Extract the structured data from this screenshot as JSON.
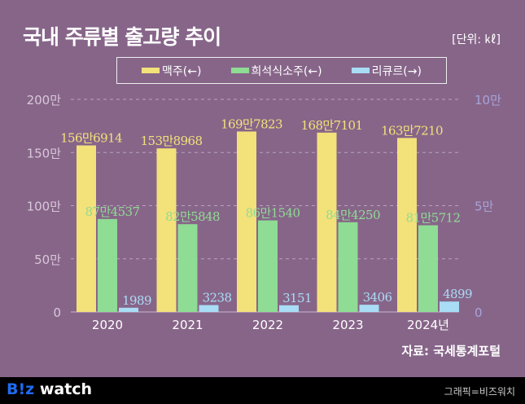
{
  "title": "국내 주류별 출고량 추이",
  "unit": "[단위: ㎘]",
  "source": "자료: 국세통계포털",
  "footer": {
    "logo_a": "B!z",
    "logo_b": " watch",
    "credit": "그래픽=비즈워치"
  },
  "colors": {
    "background": "#876589",
    "beer": "#f3e17a",
    "soju": "#8fdc94",
    "liqueur": "#a9dcf5",
    "axis_left": "#d9c8da",
    "axis_right": "#a7a4d8"
  },
  "chart_data": {
    "type": "bar",
    "categories": [
      "2020",
      "2021",
      "2022",
      "2023",
      "2024년"
    ],
    "series": [
      {
        "name": "맥주(←)",
        "axis": "left",
        "values": [
          1566914,
          1538968,
          1697823,
          1687101,
          1637210
        ],
        "labels": [
          "156만6914",
          "153만8968",
          "169만7823",
          "168만7101",
          "163만7210"
        ],
        "color": "#f3e17a"
      },
      {
        "name": "희석식소주(←)",
        "axis": "left",
        "values": [
          874537,
          825848,
          861540,
          844250,
          815712
        ],
        "labels": [
          "87만4537",
          "82만5848",
          "86만1540",
          "84만4250",
          "81만5712"
        ],
        "color": "#8fdc94"
      },
      {
        "name": "리큐르(→)",
        "axis": "right",
        "values": [
          1989,
          3238,
          3151,
          3406,
          4899
        ],
        "labels": [
          "1989",
          "3238",
          "3151",
          "3406",
          "4899"
        ],
        "color": "#a9dcf5"
      }
    ],
    "left_axis": {
      "range": [
        0,
        2000000
      ],
      "ticks": [
        0,
        500000,
        1000000,
        1500000,
        2000000
      ],
      "tick_labels": [
        "0",
        "50만",
        "100만",
        "150만",
        "200만"
      ]
    },
    "right_axis": {
      "range": [
        0,
        100000
      ],
      "ticks": [
        0,
        50000,
        100000
      ],
      "tick_labels": [
        "0",
        "5만",
        "10만"
      ]
    },
    "grid": true,
    "legend": "top"
  }
}
